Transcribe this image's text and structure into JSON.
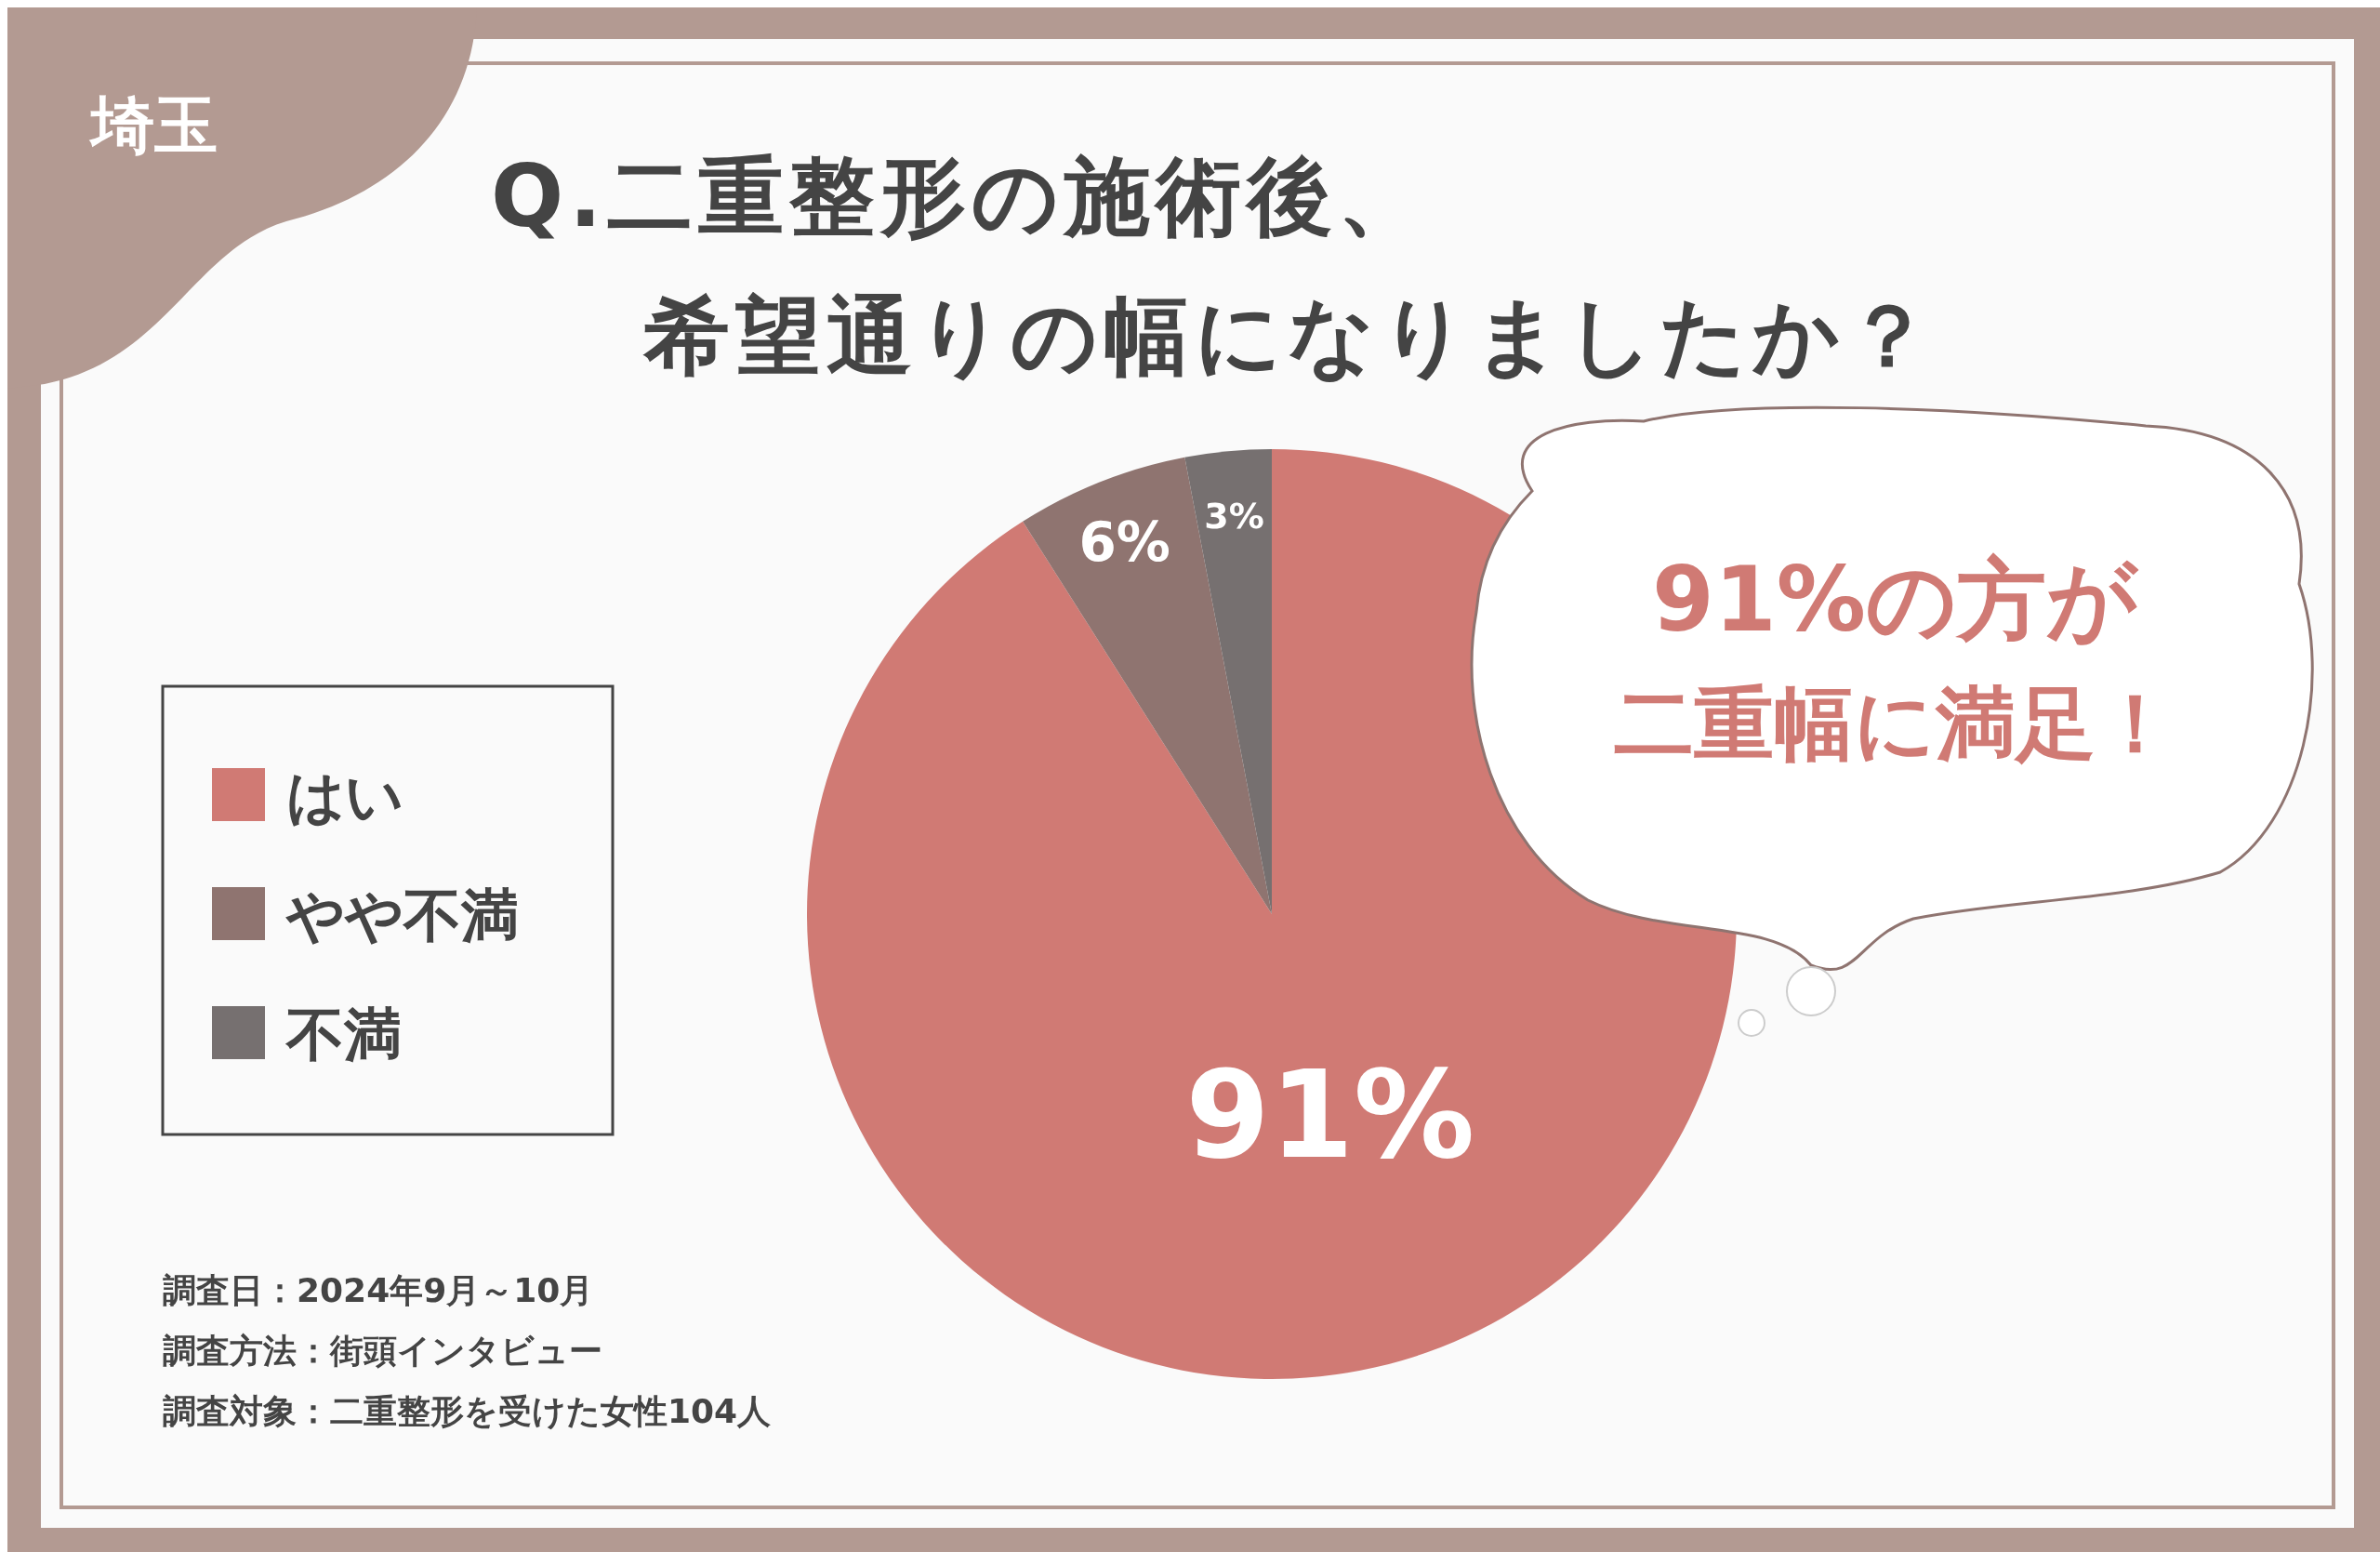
{
  "chart_data": {
    "type": "pie",
    "title": "Q.二重整形の施術後、希望通りの幅になりましたか？",
    "subtitle": "埼玉",
    "categories": [
      "はい",
      "やや不満",
      "不満"
    ],
    "values": [
      91,
      6,
      3
    ],
    "colors": [
      "#d07a74",
      "#8f7470",
      "#767070"
    ],
    "value_labels": [
      "91%",
      "6%",
      "3%"
    ],
    "legend": "left",
    "annotations": [
      "91%の方が",
      "二重幅に満足！",
      "調査日：2024年9月～10月",
      "調査方法：街頭インタビュー",
      "調査対象：二重整形を受けた女性104人"
    ]
  }
}
